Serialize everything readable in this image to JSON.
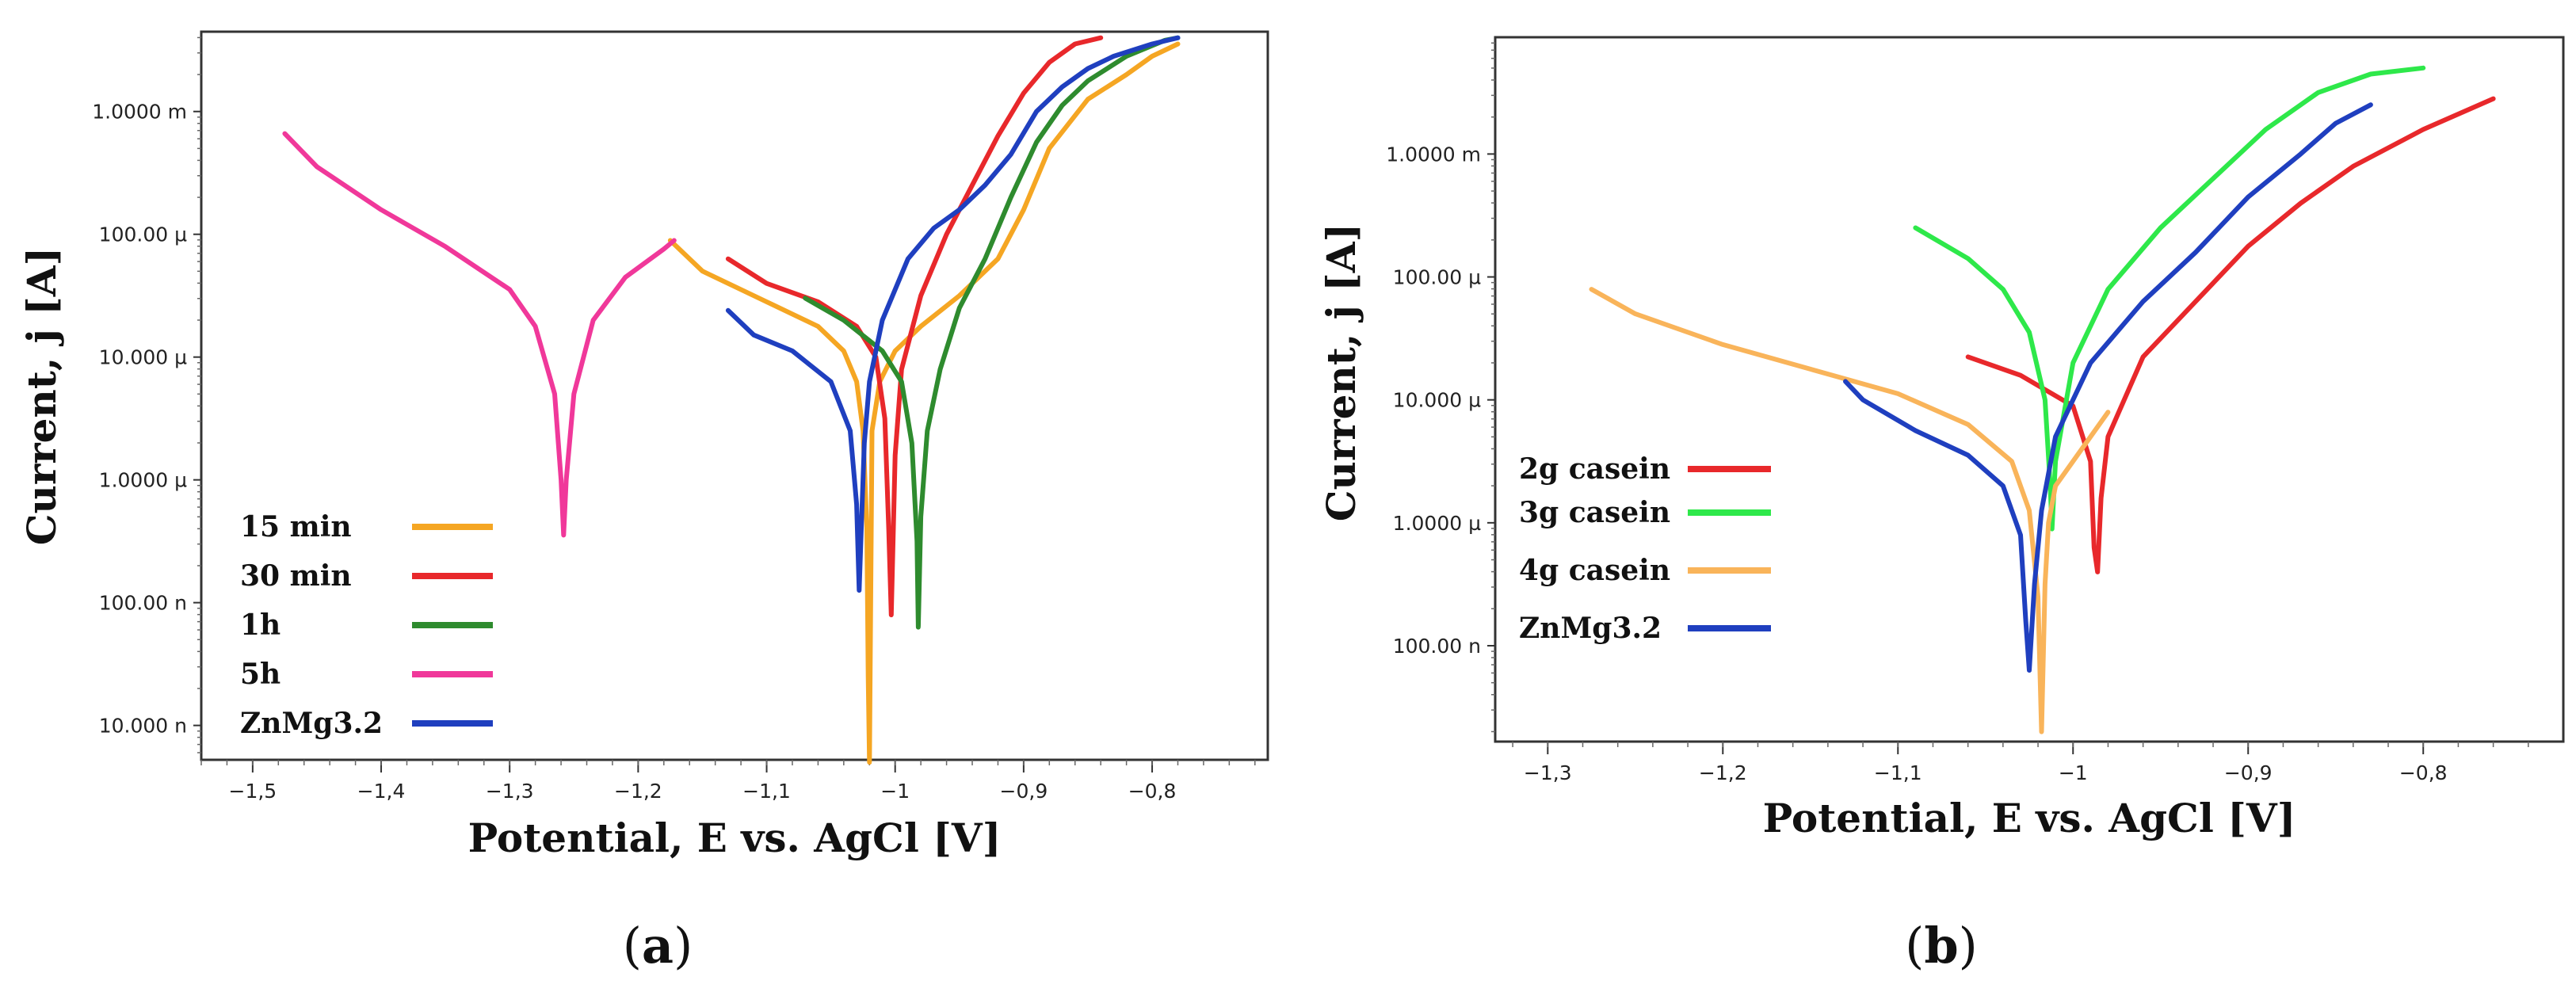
{
  "panel_labels": [
    "a",
    "b"
  ],
  "chart_data": [
    {
      "type": "line",
      "panel": "a",
      "xlabel": "Potential, E vs. AgCl [V]",
      "ylabel": "Current, j [A]",
      "xlim": [
        -1.54,
        -0.71
      ],
      "ylim": [
        -8.28,
        -2.35
      ],
      "log_y": true,
      "xticks": [
        -1.5,
        -1.4,
        -1.3,
        -1.2,
        -1.1,
        -1.0,
        -0.9,
        -0.8
      ],
      "xtick_labels": [
        "−1,5",
        "−1,4",
        "−1,3",
        "−1,2",
        "−1,1",
        "−1",
        "−0,9",
        "−0,8"
      ],
      "yticks": [
        -3,
        -4,
        -5,
        -6,
        -7,
        -8
      ],
      "ytick_labels": [
        "1.0000 m",
        "100.00 µ",
        "10.000 µ",
        "1.0000 µ",
        "100.00 n",
        "10.000 n"
      ],
      "series": [
        {
          "name": "15 min",
          "color": "#f5a623",
          "x": [
            -1.175,
            -1.15,
            -1.1,
            -1.06,
            -1.04,
            -1.03,
            -1.025,
            -1.022,
            -1.021,
            -1.02,
            -1.018,
            -1.012,
            -1.0,
            -0.98,
            -0.95,
            -0.92,
            -0.9,
            -0.88,
            -0.85,
            -0.82,
            -0.8,
            -0.78
          ],
          "y": [
            -4.05,
            -4.3,
            -4.55,
            -4.75,
            -4.95,
            -5.2,
            -5.6,
            -6.4,
            -7.6,
            -8.3,
            -5.6,
            -5.2,
            -4.95,
            -4.75,
            -4.5,
            -4.2,
            -3.8,
            -3.3,
            -2.9,
            -2.7,
            -2.55,
            -2.45
          ]
        },
        {
          "name": "30 min",
          "color": "#e8282b",
          "x": [
            -1.13,
            -1.1,
            -1.06,
            -1.03,
            -1.015,
            -1.008,
            -1.005,
            -1.003,
            -1.0,
            -0.995,
            -0.98,
            -0.96,
            -0.94,
            -0.92,
            -0.9,
            -0.88,
            -0.86,
            -0.84
          ],
          "y": [
            -4.2,
            -4.4,
            -4.55,
            -4.75,
            -5.0,
            -5.5,
            -6.4,
            -7.1,
            -5.8,
            -5.1,
            -4.5,
            -4.0,
            -3.6,
            -3.2,
            -2.85,
            -2.6,
            -2.45,
            -2.4
          ]
        },
        {
          "name": "1h",
          "color": "#2e8b2e",
          "x": [
            -1.07,
            -1.04,
            -1.01,
            -0.995,
            -0.987,
            -0.983,
            -0.982,
            -0.98,
            -0.975,
            -0.965,
            -0.95,
            -0.93,
            -0.91,
            -0.89,
            -0.87,
            -0.85,
            -0.82,
            -0.79,
            -0.78
          ],
          "y": [
            -4.52,
            -4.7,
            -4.95,
            -5.2,
            -5.7,
            -6.5,
            -7.2,
            -6.3,
            -5.6,
            -5.1,
            -4.6,
            -4.2,
            -3.7,
            -3.25,
            -2.95,
            -2.75,
            -2.55,
            -2.42,
            -2.4
          ]
        },
        {
          "name": "5h",
          "color": "#f0389a",
          "x": [
            -1.475,
            -1.45,
            -1.4,
            -1.35,
            -1.3,
            -1.28,
            -1.265,
            -1.26,
            -1.258,
            -1.256,
            -1.25,
            -1.235,
            -1.21,
            -1.18,
            -1.172
          ],
          "y": [
            -3.18,
            -3.45,
            -3.8,
            -4.1,
            -4.45,
            -4.75,
            -5.3,
            -6.0,
            -6.45,
            -6.0,
            -5.3,
            -4.7,
            -4.35,
            -4.12,
            -4.05
          ]
        },
        {
          "name": "ZnMg3.2",
          "color": "#1f3fbf",
          "x": [
            -1.13,
            -1.11,
            -1.08,
            -1.05,
            -1.035,
            -1.03,
            -1.028,
            -1.026,
            -1.024,
            -1.02,
            -1.01,
            -0.99,
            -0.97,
            -0.95,
            -0.93,
            -0.91,
            -0.89,
            -0.87,
            -0.85,
            -0.83,
            -0.8,
            -0.78
          ],
          "y": [
            -4.62,
            -4.82,
            -4.95,
            -5.2,
            -5.6,
            -6.2,
            -6.9,
            -6.3,
            -5.7,
            -5.2,
            -4.7,
            -4.2,
            -3.95,
            -3.8,
            -3.6,
            -3.35,
            -3.0,
            -2.8,
            -2.65,
            -2.55,
            -2.45,
            -2.4
          ]
        }
      ]
    },
    {
      "type": "line",
      "panel": "b",
      "xlabel": "Potential, E vs. AgCl [V]",
      "ylabel": "Current, j [A]",
      "xlim": [
        -1.33,
        -0.72
      ],
      "ylim": [
        -7.78,
        -2.05
      ],
      "log_y": true,
      "xticks": [
        -1.3,
        -1.2,
        -1.1,
        -1.0,
        -0.9,
        -0.8
      ],
      "xtick_labels": [
        "−1,3",
        "−1,2",
        "−1,1",
        "−1",
        "−0,9",
        "−0,8"
      ],
      "yticks": [
        -3,
        -4,
        -5,
        -6,
        -7
      ],
      "ytick_labels": [
        "1.0000 m",
        "100.00 µ",
        "10.000 µ",
        "1.0000 µ",
        "100.00 n"
      ],
      "series": [
        {
          "name": "2g casein",
          "color": "#e8282b",
          "x": [
            -1.06,
            -1.03,
            -1.0,
            -0.99,
            -0.988,
            -0.986,
            -0.984,
            -0.98,
            -0.96,
            -0.93,
            -0.9,
            -0.87,
            -0.84,
            -0.8,
            -0.76
          ],
          "y": [
            -4.65,
            -4.8,
            -5.05,
            -5.5,
            -6.2,
            -6.4,
            -5.8,
            -5.3,
            -4.65,
            -4.2,
            -3.75,
            -3.4,
            -3.1,
            -2.8,
            -2.55
          ]
        },
        {
          "name": "3g casein",
          "color": "#2ee84a",
          "x": [
            -1.09,
            -1.06,
            -1.04,
            -1.025,
            -1.016,
            -1.013,
            -1.012,
            -1.01,
            -1.0,
            -0.98,
            -0.95,
            -0.92,
            -0.89,
            -0.86,
            -0.83,
            -0.8
          ],
          "y": [
            -3.6,
            -3.85,
            -4.1,
            -4.45,
            -5.0,
            -5.7,
            -6.05,
            -5.5,
            -4.7,
            -4.1,
            -3.6,
            -3.2,
            -2.8,
            -2.5,
            -2.35,
            -2.3
          ]
        },
        {
          "name": "4g casein",
          "color": "#f9b45a",
          "x": [
            -1.275,
            -1.25,
            -1.2,
            -1.15,
            -1.1,
            -1.06,
            -1.035,
            -1.025,
            -1.02,
            -1.018,
            -1.016,
            -1.014,
            -1.01,
            -1.0,
            -0.99,
            -0.98
          ],
          "y": [
            -4.1,
            -4.3,
            -4.55,
            -4.75,
            -4.95,
            -5.2,
            -5.5,
            -5.9,
            -6.6,
            -7.7,
            -6.5,
            -6.0,
            -5.7,
            -5.5,
            -5.3,
            -5.1
          ]
        },
        {
          "name": "ZnMg3.2",
          "color": "#1f3fbf",
          "x": [
            -1.13,
            -1.12,
            -1.09,
            -1.06,
            -1.04,
            -1.03,
            -1.027,
            -1.025,
            -1.022,
            -1.018,
            -1.01,
            -0.99,
            -0.96,
            -0.93,
            -0.9,
            -0.87,
            -0.85,
            -0.83
          ],
          "y": [
            -4.85,
            -5.0,
            -5.25,
            -5.45,
            -5.7,
            -6.1,
            -6.8,
            -7.2,
            -6.5,
            -5.9,
            -5.3,
            -4.7,
            -4.2,
            -3.8,
            -3.35,
            -3.0,
            -2.75,
            -2.6
          ]
        }
      ]
    }
  ]
}
